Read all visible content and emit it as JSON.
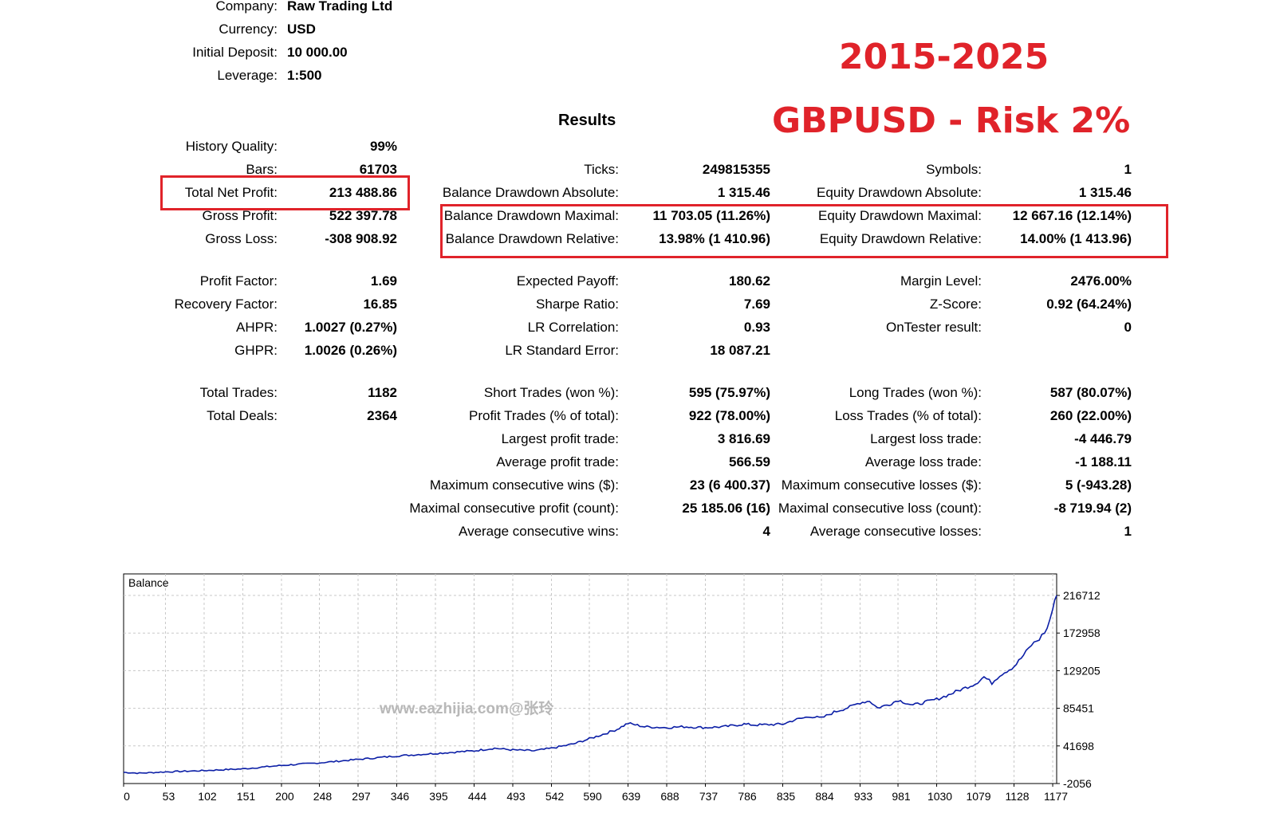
{
  "account": [
    {
      "label": "Company:",
      "value": "Raw Trading Ltd"
    },
    {
      "label": "Currency:",
      "value": "USD"
    },
    {
      "label": "Initial Deposit:",
      "value": "10 000.00"
    },
    {
      "label": "Leverage:",
      "value": "1:500"
    }
  ],
  "banner": {
    "years": "2015-2025",
    "pair": "GBPUSD - Risk 2%"
  },
  "results_heading": "Results",
  "col1": [
    {
      "label": "History Quality:",
      "value": "99%"
    },
    {
      "label": "Bars:",
      "value": "61703"
    },
    {
      "label": "Total Net Profit:",
      "value": "213 488.86"
    },
    {
      "label": "Gross Profit:",
      "value": "522 397.78"
    },
    {
      "label": "Gross Loss:",
      "value": "-308 908.92"
    },
    {
      "label": "Profit Factor:",
      "value": "1.69"
    },
    {
      "label": "Recovery Factor:",
      "value": "16.85"
    },
    {
      "label": "AHPR:",
      "value": "1.0027 (0.27%)"
    },
    {
      "label": "GHPR:",
      "value": "1.0026 (0.26%)"
    },
    {
      "label": "Total Trades:",
      "value": "1182"
    },
    {
      "label": "Total Deals:",
      "value": "2364"
    }
  ],
  "col2": [
    {
      "label": "Ticks:",
      "value": "249815355"
    },
    {
      "label": "Balance Drawdown Absolute:",
      "value": "1 315.46"
    },
    {
      "label": "Balance Drawdown Maximal:",
      "value": "11 703.05 (11.26%)"
    },
    {
      "label": "Balance Drawdown Relative:",
      "value": "13.98% (1 410.96)"
    },
    {
      "label": "Expected Payoff:",
      "value": "180.62"
    },
    {
      "label": "Sharpe Ratio:",
      "value": "7.69"
    },
    {
      "label": "LR Correlation:",
      "value": "0.93"
    },
    {
      "label": "LR Standard Error:",
      "value": "18 087.21"
    },
    {
      "label": "Short Trades (won %):",
      "value": "595 (75.97%)"
    },
    {
      "label": "Profit Trades (% of total):",
      "value": "922 (78.00%)"
    },
    {
      "label": "Largest profit trade:",
      "value": "3 816.69"
    },
    {
      "label": "Average profit trade:",
      "value": "566.59"
    },
    {
      "label": "Maximum consecutive wins ($):",
      "value": "23 (6 400.37)"
    },
    {
      "label": "Maximal consecutive profit (count):",
      "value": "25 185.06 (16)"
    },
    {
      "label": "Average consecutive wins:",
      "value": "4"
    }
  ],
  "col3": [
    {
      "label": "Symbols:",
      "value": "1"
    },
    {
      "label": "Equity Drawdown Absolute:",
      "value": "1 315.46"
    },
    {
      "label": "Equity Drawdown Maximal:",
      "value": "12 667.16 (12.14%)"
    },
    {
      "label": "Equity Drawdown Relative:",
      "value": "14.00% (1 413.96)"
    },
    {
      "label": "Margin Level:",
      "value": "2476.00%"
    },
    {
      "label": "Z-Score:",
      "value": "0.92 (64.24%)"
    },
    {
      "label": "OnTester result:",
      "value": "0"
    },
    {
      "label": "Long Trades (won %):",
      "value": "587 (80.07%)"
    },
    {
      "label": "Loss Trades (% of total):",
      "value": "260 (22.00%)"
    },
    {
      "label": "Largest loss trade:",
      "value": "-4 446.79"
    },
    {
      "label": "Average loss trade:",
      "value": "-1 188.11"
    },
    {
      "label": "Maximum consecutive losses ($):",
      "value": "5 (-943.28)"
    },
    {
      "label": "Maximal consecutive loss (count):",
      "value": "-8 719.94 (2)"
    },
    {
      "label": "Average consecutive losses:",
      "value": "1"
    }
  ],
  "watermark": "www.eazhijia.com@张玲",
  "chart_data": {
    "type": "line",
    "title": "Balance",
    "xlabel": "",
    "ylabel": "",
    "x_ticks": [
      0,
      53,
      102,
      151,
      200,
      248,
      297,
      346,
      395,
      444,
      493,
      542,
      590,
      639,
      688,
      737,
      786,
      835,
      884,
      933,
      981,
      1030,
      1079,
      1128,
      1177
    ],
    "y_ticks": [
      -2056,
      41698,
      85451,
      129205,
      172958,
      216712
    ],
    "xlim": [
      0,
      1182
    ],
    "ylim": [
      -2056,
      236000
    ],
    "grid": true,
    "line_color": "#0b1ea6",
    "series": [
      {
        "x": [
          0,
          20,
          53,
          102,
          151,
          200,
          248,
          297,
          346,
          395,
          444,
          470,
          493,
          520,
          542,
          570,
          590,
          610,
          625,
          639,
          660,
          688,
          710,
          737,
          760,
          786,
          800,
          835,
          850,
          870,
          884,
          900,
          920,
          933,
          945,
          955,
          970,
          981,
          1000,
          1030,
          1045,
          1060,
          1079,
          1090,
          1100,
          1110,
          1128,
          1140,
          1150,
          1160,
          1170,
          1177,
          1182
        ],
        "y": [
          11000,
          10000,
          11500,
          13000,
          15000,
          19000,
          22000,
          26000,
          30000,
          33000,
          36000,
          39000,
          37000,
          36000,
          39000,
          44000,
          50000,
          56000,
          61000,
          68000,
          64000,
          63000,
          64000,
          63000,
          64000,
          67000,
          66000,
          67000,
          72000,
          76000,
          74000,
          81000,
          87000,
          92000,
          94000,
          86000,
          90000,
          95000,
          89000,
          96000,
          101000,
          107000,
          114000,
          122000,
          115000,
          124000,
          134000,
          147000,
          159000,
          166000,
          178000,
          201000,
          216712
        ]
      }
    ]
  }
}
